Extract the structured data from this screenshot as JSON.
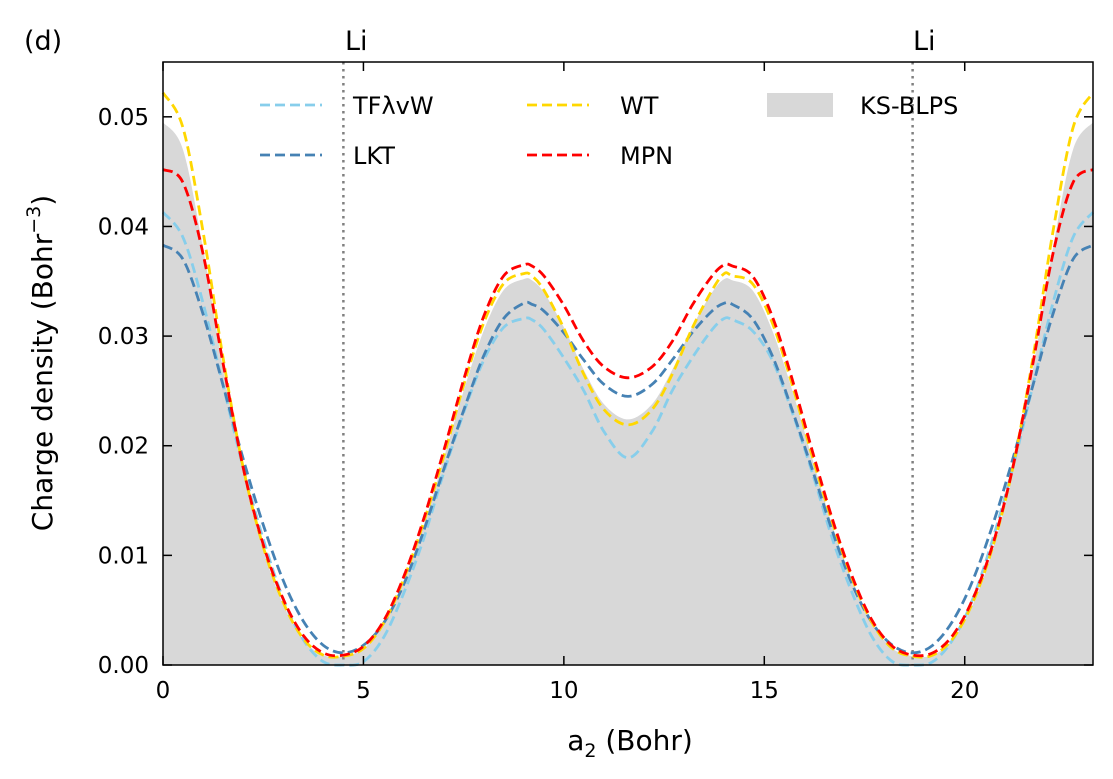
{
  "panel_label": "(d)",
  "atom_markers": [
    {
      "label": "Li",
      "x": 4.5
    },
    {
      "label": "Li",
      "x": 18.7
    }
  ],
  "colors": {
    "TFλvW": "#87ceeb",
    "LKT": "#4682b4",
    "WT": "#ffd700",
    "MPN": "#ff0000",
    "KS-BLPS": "#d8d8d8",
    "marker_line": "#808080"
  },
  "chart_data": {
    "type": "line",
    "xlabel_main": "a",
    "xlabel_sub": "2",
    "xlabel_unit": " (Bohr)",
    "ylabel_main": "Charge density (Bohr",
    "ylabel_sup": "−3",
    "ylabel_close": ")",
    "xlim": [
      0,
      23.2
    ],
    "ylim": [
      0,
      0.055
    ],
    "x_ticks": [
      0,
      5,
      10,
      15,
      20
    ],
    "x_tick_labels": [
      "0",
      "5",
      "10",
      "15",
      "20"
    ],
    "y_ticks": [
      0,
      0.01,
      0.02,
      0.03,
      0.04,
      0.05
    ],
    "y_tick_labels": [
      "0.00",
      "0.01",
      "0.02",
      "0.03",
      "0.04",
      "0.05"
    ],
    "legend_placement": "top-center",
    "series": [
      {
        "name": "TFλvW",
        "style": "dashed",
        "x": [
          0,
          0.5,
          1,
          1.5,
          2,
          2.5,
          3,
          3.5,
          4,
          4.5,
          5,
          5.5,
          6,
          6.5,
          7,
          7.5,
          8,
          8.5,
          9,
          9.2,
          9.5,
          10,
          10.5,
          11,
          11.6,
          12.2,
          12.7,
          13.2,
          13.7,
          14,
          14.2,
          14.7,
          15.2,
          15.7,
          16.2,
          16.7,
          17.2,
          17.7,
          18.2,
          18.7,
          19.2,
          19.7,
          20.2,
          20.7,
          21.2,
          21.7,
          22.2,
          22.7,
          23.2
        ],
        "y": [
          0.0413,
          0.039,
          0.033,
          0.0255,
          0.018,
          0.0115,
          0.006,
          0.0023,
          0.0003,
          0.0,
          0.0003,
          0.0025,
          0.0065,
          0.0115,
          0.0175,
          0.023,
          0.0278,
          0.0308,
          0.0316,
          0.0315,
          0.0306,
          0.028,
          0.025,
          0.0213,
          0.0189,
          0.0213,
          0.025,
          0.028,
          0.0306,
          0.0316,
          0.0315,
          0.0305,
          0.0278,
          0.023,
          0.0175,
          0.0115,
          0.0065,
          0.0025,
          0.0003,
          0.0,
          0.0003,
          0.0023,
          0.006,
          0.0115,
          0.018,
          0.0255,
          0.033,
          0.039,
          0.0413
        ]
      },
      {
        "name": "LKT",
        "style": "dashed",
        "x": [
          0,
          0.5,
          1,
          1.5,
          2,
          2.5,
          3,
          3.5,
          4,
          4.5,
          5,
          5.5,
          6,
          6.5,
          7,
          7.5,
          8,
          8.5,
          9,
          9.2,
          9.5,
          10,
          10.5,
          11,
          11.6,
          12.2,
          12.7,
          13.2,
          13.7,
          14,
          14.2,
          14.7,
          15.2,
          15.7,
          16.2,
          16.7,
          17.2,
          17.7,
          18.2,
          18.7,
          19.2,
          19.7,
          20.2,
          20.7,
          21.2,
          21.7,
          22.2,
          22.7,
          23.2
        ],
        "y": [
          0.0383,
          0.037,
          0.032,
          0.0255,
          0.0188,
          0.0128,
          0.0077,
          0.004,
          0.0018,
          0.0011,
          0.0018,
          0.0038,
          0.0073,
          0.0122,
          0.0178,
          0.0232,
          0.0282,
          0.0316,
          0.033,
          0.0329,
          0.0323,
          0.0303,
          0.0278,
          0.0256,
          0.0245,
          0.0256,
          0.0278,
          0.0303,
          0.0323,
          0.033,
          0.0329,
          0.0316,
          0.0282,
          0.0232,
          0.0178,
          0.0122,
          0.0073,
          0.0038,
          0.0018,
          0.0011,
          0.0018,
          0.004,
          0.0077,
          0.0128,
          0.0188,
          0.0255,
          0.032,
          0.037,
          0.0383
        ]
      },
      {
        "name": "WT",
        "style": "dashed",
        "x": [
          0,
          0.5,
          1,
          1.5,
          2,
          2.5,
          3,
          3.5,
          4,
          4.5,
          5,
          5.5,
          6,
          6.5,
          7,
          7.5,
          8,
          8.5,
          9,
          9.2,
          9.5,
          10,
          10.5,
          11,
          11.6,
          12.2,
          12.7,
          13.2,
          13.7,
          14,
          14.2,
          14.7,
          15.2,
          15.7,
          16.2,
          16.7,
          17.2,
          17.7,
          18.2,
          18.7,
          19.2,
          19.7,
          20.2,
          20.7,
          21.2,
          21.7,
          22.2,
          22.7,
          23.2
        ],
        "y": [
          0.0522,
          0.049,
          0.0395,
          0.028,
          0.018,
          0.0108,
          0.0057,
          0.0024,
          0.0009,
          0.0008,
          0.0015,
          0.0038,
          0.0078,
          0.013,
          0.019,
          0.0255,
          0.0312,
          0.0348,
          0.0357,
          0.0355,
          0.0342,
          0.0307,
          0.0265,
          0.0233,
          0.0219,
          0.0233,
          0.0265,
          0.0307,
          0.0342,
          0.0357,
          0.0355,
          0.0348,
          0.0312,
          0.0255,
          0.019,
          0.013,
          0.0078,
          0.0038,
          0.0015,
          0.0008,
          0.0009,
          0.0024,
          0.0057,
          0.0108,
          0.018,
          0.028,
          0.0395,
          0.049,
          0.0522
        ]
      },
      {
        "name": "MPN",
        "style": "dashed",
        "x": [
          0,
          0.5,
          1,
          1.5,
          2,
          2.5,
          3,
          3.5,
          4,
          4.5,
          5,
          5.5,
          6,
          6.5,
          7,
          7.5,
          8,
          8.5,
          9,
          9.2,
          9.5,
          10,
          10.5,
          11,
          11.6,
          12.2,
          12.7,
          13.2,
          13.7,
          14,
          14.2,
          14.7,
          15.2,
          15.7,
          16.2,
          16.7,
          17.2,
          17.7,
          18.2,
          18.7,
          19.2,
          19.7,
          20.2,
          20.7,
          21.2,
          21.7,
          22.2,
          22.7,
          23.2
        ],
        "y": [
          0.0452,
          0.044,
          0.0375,
          0.0275,
          0.018,
          0.011,
          0.006,
          0.0027,
          0.0011,
          0.0009,
          0.0017,
          0.004,
          0.008,
          0.0133,
          0.0195,
          0.026,
          0.0318,
          0.0355,
          0.0365,
          0.0364,
          0.0355,
          0.0328,
          0.0295,
          0.0272,
          0.0262,
          0.0272,
          0.0295,
          0.0328,
          0.0355,
          0.0365,
          0.0364,
          0.0355,
          0.0318,
          0.026,
          0.0195,
          0.0133,
          0.008,
          0.004,
          0.0017,
          0.0009,
          0.0011,
          0.0027,
          0.006,
          0.011,
          0.018,
          0.0275,
          0.0375,
          0.044,
          0.0452
        ]
      },
      {
        "name": "KS-BLPS",
        "style": "filled",
        "x": [
          0,
          0.5,
          1,
          1.5,
          2,
          2.5,
          3,
          3.5,
          4,
          4.5,
          5,
          5.5,
          6,
          6.5,
          7,
          7.5,
          8,
          8.5,
          9,
          9.2,
          9.5,
          10,
          10.5,
          11,
          11.6,
          12.2,
          12.7,
          13.2,
          13.7,
          14,
          14.2,
          14.7,
          15.2,
          15.7,
          16.2,
          16.7,
          17.2,
          17.7,
          18.2,
          18.7,
          19.2,
          19.7,
          20.2,
          20.7,
          21.2,
          21.7,
          22.2,
          22.7,
          23.2
        ],
        "y": [
          0.0495,
          0.047,
          0.038,
          0.027,
          0.0175,
          0.0105,
          0.0055,
          0.0023,
          0.0009,
          0.0008,
          0.0015,
          0.0037,
          0.0076,
          0.0127,
          0.0188,
          0.025,
          0.0305,
          0.0342,
          0.0352,
          0.0351,
          0.034,
          0.0308,
          0.0269,
          0.0238,
          0.0224,
          0.0238,
          0.0269,
          0.0308,
          0.034,
          0.0352,
          0.0351,
          0.0342,
          0.0305,
          0.025,
          0.0188,
          0.0127,
          0.0076,
          0.0037,
          0.0015,
          0.0008,
          0.0009,
          0.0023,
          0.0055,
          0.0105,
          0.0175,
          0.027,
          0.038,
          0.047,
          0.0495
        ]
      }
    ]
  }
}
